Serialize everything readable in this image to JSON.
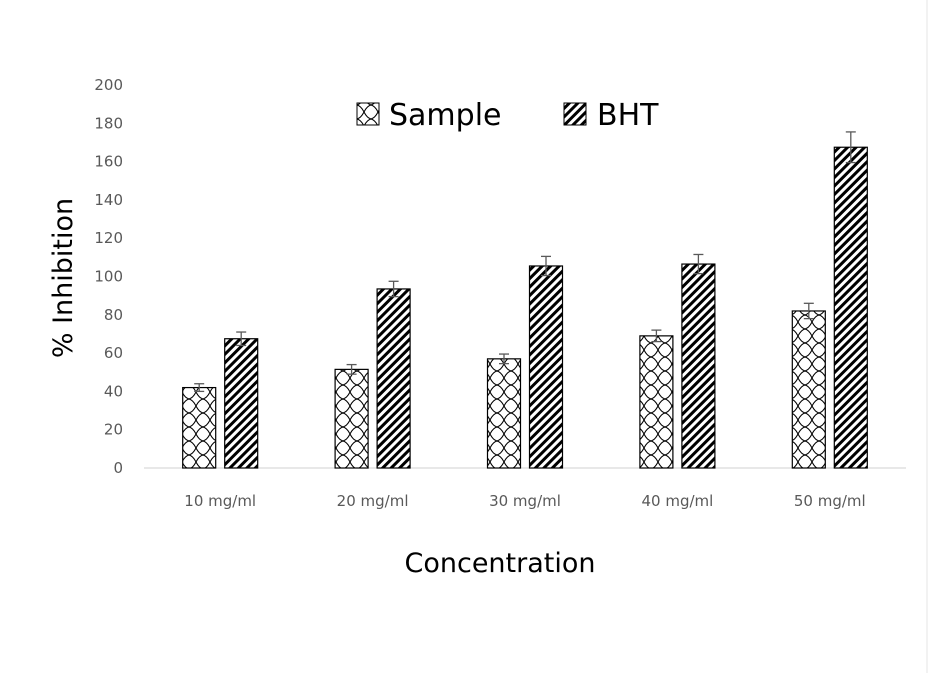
{
  "chart_data": {
    "type": "bar",
    "title": "",
    "xlabel": "Concentration",
    "ylabel": "% Inhibition",
    "categories": [
      "10 mg/ml",
      "20 mg/ml",
      "30 mg/ml",
      "40 mg/ml",
      "50 mg/ml"
    ],
    "series": [
      {
        "name": "Sample",
        "values": [
          42,
          51.5,
          57,
          69,
          82
        ],
        "errors": [
          2,
          2.5,
          2.5,
          3,
          4
        ],
        "pattern": "wave-crosshatch"
      },
      {
        "name": "BHT",
        "values": [
          67.5,
          93.5,
          105.5,
          106.5,
          167.5
        ],
        "errors": [
          3.5,
          4,
          5,
          5,
          8
        ],
        "pattern": "dense-diagonal"
      }
    ],
    "ylim": [
      0,
      200
    ],
    "yticks": [
      0,
      20,
      40,
      60,
      80,
      100,
      120,
      140,
      160,
      180,
      200
    ],
    "grid": false,
    "legend_position": "top-center",
    "error_bars": true,
    "colors": {
      "bar_stroke": "#000000",
      "pattern_ink": "#000000",
      "tick_text": "#595959",
      "axis_line": "#d9d9d9",
      "error_bar": "#595959",
      "frame": "#d9d9d9"
    }
  }
}
